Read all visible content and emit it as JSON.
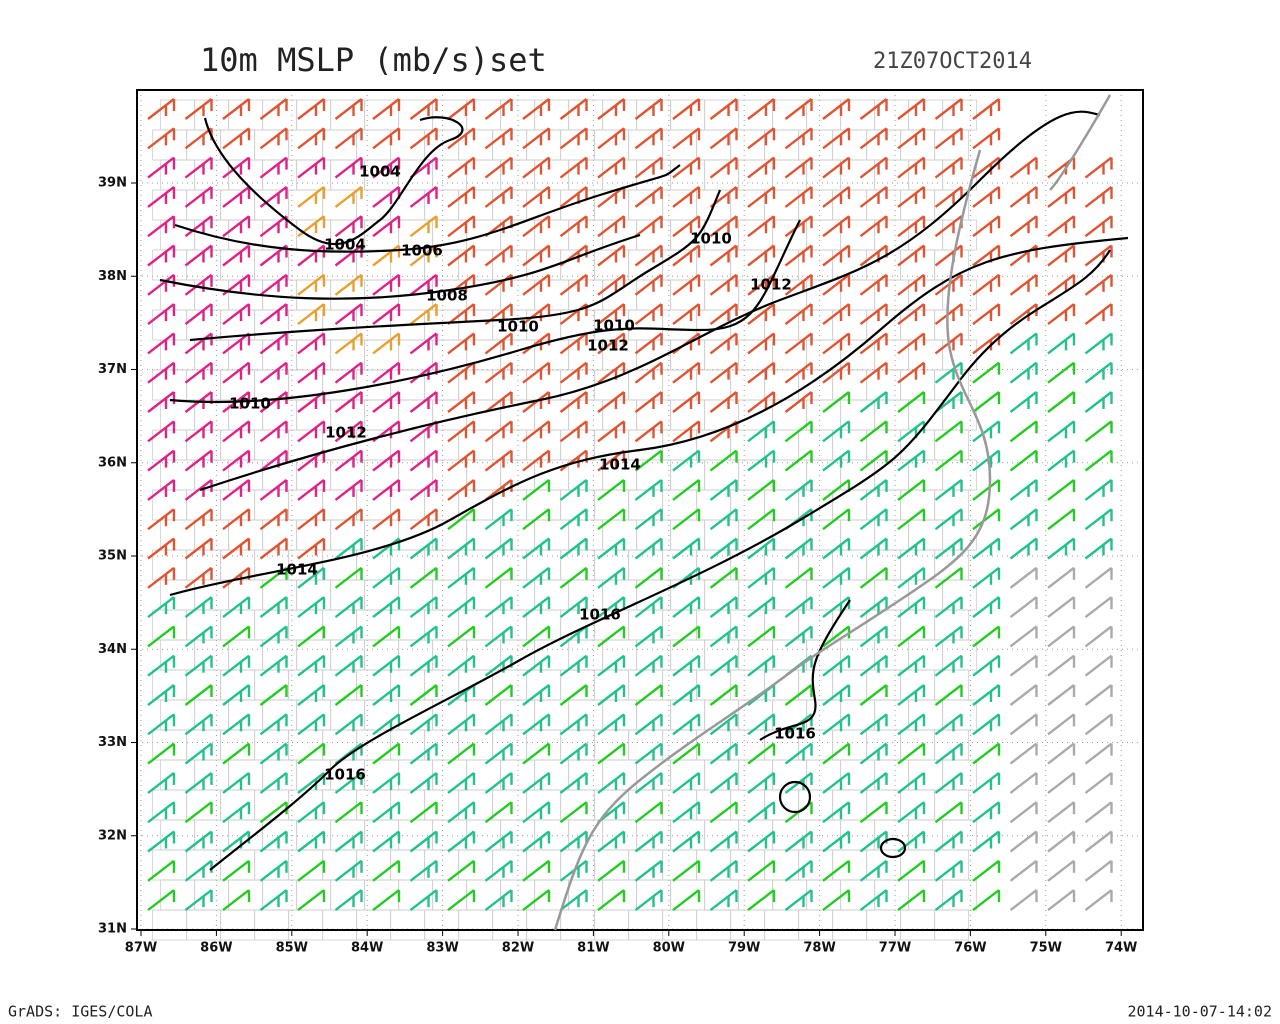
{
  "header": {
    "title": "10m MSLP (mb/s)set",
    "time": "21Z07OCT2014"
  },
  "map": {
    "lat_labels": [
      "39N",
      "38N",
      "37N",
      "36N",
      "35N",
      "34N",
      "33N",
      "32N",
      "31N"
    ],
    "lon_labels": [
      "87W",
      "86W",
      "85W",
      "84W",
      "83W",
      "82W",
      "81W",
      "80W",
      "79W",
      "78W",
      "77W",
      "76W",
      "75W",
      "74W"
    ],
    "contour_labels": [
      "1004",
      "1004",
      "1006",
      "1008",
      "1010",
      "1010",
      "1012",
      "1010",
      "1012",
      "1010",
      "1012",
      "1014",
      "1014",
      "1016",
      "1016",
      "1016"
    ]
  },
  "footer": {
    "left": "GrADS: IGES/COLA",
    "right": "2014-10-07-14:02"
  }
}
